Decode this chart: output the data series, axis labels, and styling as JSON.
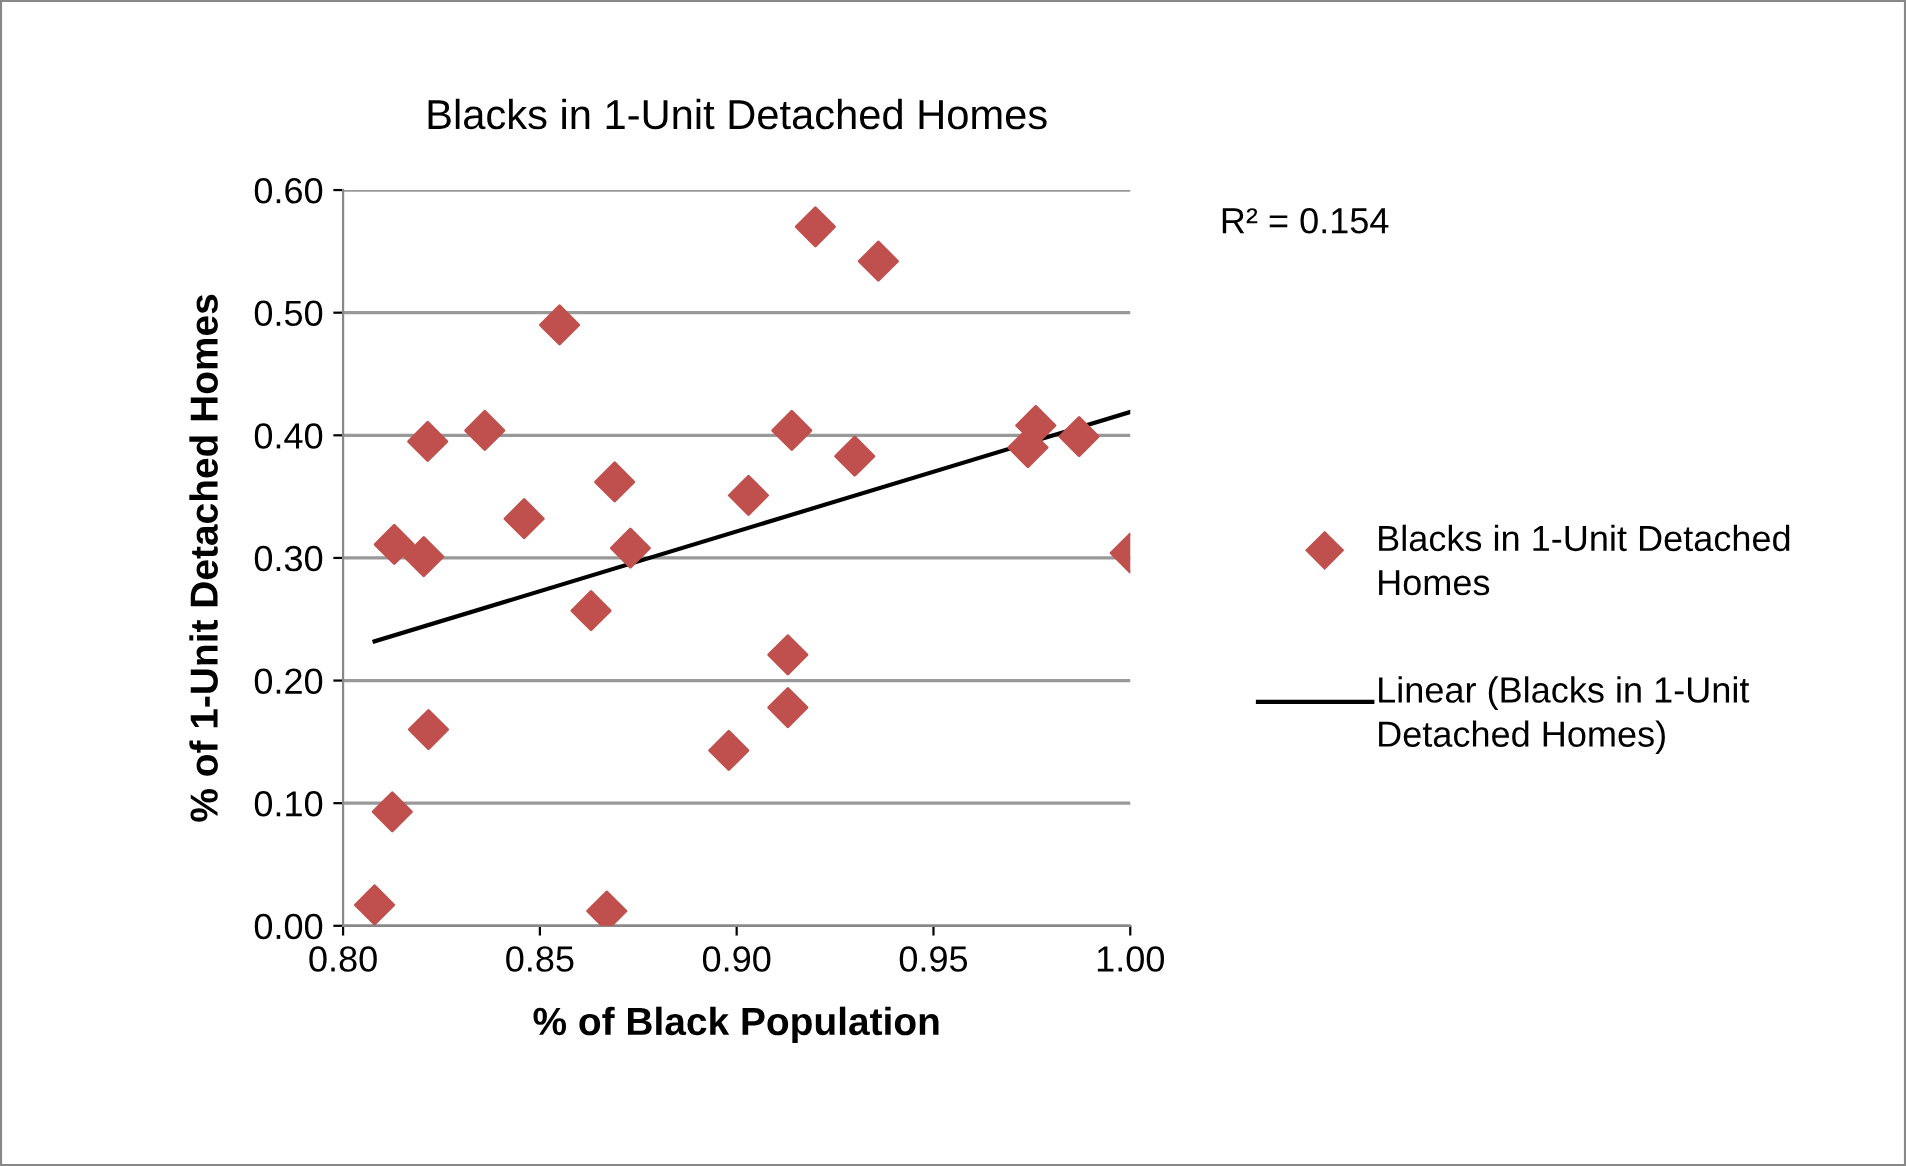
{
  "chart_data": {
    "type": "scatter",
    "title": "Blacks in 1-Unit Detached Homes",
    "xlabel": "% of Black Population",
    "ylabel": "% of 1-Unit Detached Homes",
    "annotations": [
      "R² = 0.154"
    ],
    "series": [
      {
        "name": "Blacks in 1-Unit Detached Homes",
        "color": "#c0504d",
        "marker": "diamond",
        "x": [
          0.808,
          0.8125,
          0.813,
          0.8205,
          0.8215,
          0.8217,
          0.836,
          0.846,
          0.855,
          0.863,
          0.867,
          0.869,
          0.873,
          0.898,
          0.903,
          0.913,
          0.913,
          0.914,
          0.92,
          0.93,
          0.936,
          0.974,
          0.976,
          0.987,
          1.0
        ],
        "values": [
          0.017,
          0.093,
          0.311,
          0.301,
          0.395,
          0.16,
          0.404,
          0.332,
          0.49,
          0.257,
          0.012,
          0.362,
          0.308,
          0.143,
          0.351,
          0.221,
          0.178,
          0.404,
          0.57,
          0.383,
          0.542,
          0.39,
          0.408,
          0.399,
          0.304
        ]
      },
      {
        "name": "Linear (Blacks in 1-Unit Detached Homes)",
        "type": "line",
        "color": "#000000",
        "marker": "none",
        "line_style": "solid",
        "x": [
          0.808,
          1.0
        ],
        "values": [
          0.232,
          0.419
        ]
      }
    ],
    "xlim": [
      0.8,
      1.0
    ],
    "xticks": [
      {
        "value": 0.8,
        "label": "0.80"
      },
      {
        "value": 0.85,
        "label": "0.85"
      },
      {
        "value": 0.9,
        "label": "0.90"
      },
      {
        "value": 0.95,
        "label": "0.95"
      },
      {
        "value": 1.0,
        "label": "1.00"
      }
    ],
    "ylim": [
      0,
      0.6
    ],
    "yticks": [
      {
        "value": 0,
        "label": "0.00"
      },
      {
        "value": 0.1,
        "label": "0.10"
      },
      {
        "value": 0.2,
        "label": "0.20"
      },
      {
        "value": 0.3,
        "label": "0.30"
      },
      {
        "value": 0.4,
        "label": "0.40"
      },
      {
        "value": 0.5,
        "label": "0.50"
      },
      {
        "value": 0.6,
        "label": "0.60"
      }
    ],
    "grid": "y",
    "legend": "right"
  }
}
